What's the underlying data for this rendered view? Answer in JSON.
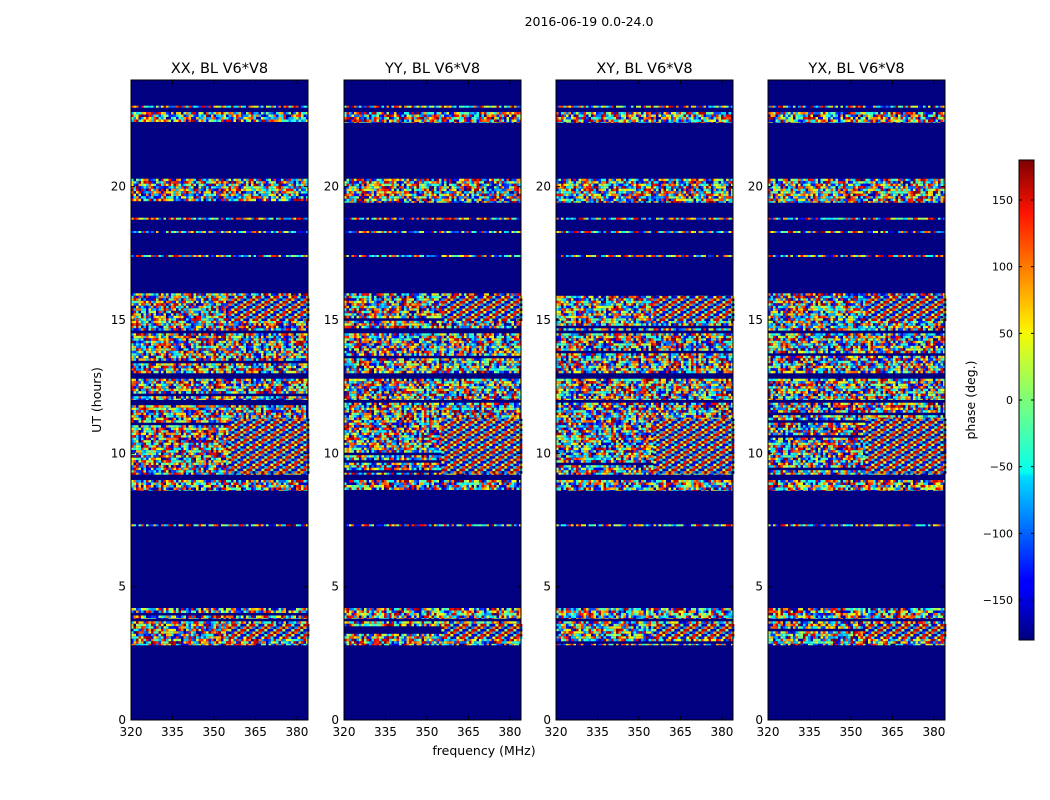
{
  "suptitle": "2016-06-19 0.0-24.0",
  "xlabel": "frequency (MHz)",
  "ylabel": "UT (hours)",
  "colorbar": {
    "label": "phase (deg.)",
    "min": -180,
    "max": 180,
    "ticks": [
      -150,
      -100,
      -50,
      0,
      50,
      100,
      150
    ],
    "tick_labels": [
      "−150",
      "−100",
      "−50",
      "0",
      "50",
      "100",
      "150"
    ],
    "colormap": "jet"
  },
  "chart_data": {
    "type": "heatmap",
    "title": "2016-06-19 0.0-24.0",
    "xlabel": "frequency (MHz)",
    "ylabel": "UT (hours)",
    "xlim": [
      320,
      384
    ],
    "ylim": [
      0,
      24
    ],
    "xticks": [
      320,
      335,
      350,
      365,
      380
    ],
    "yticks": [
      0,
      5,
      10,
      15,
      20
    ],
    "value_label": "phase (deg.)",
    "value_range": [
      -180,
      180
    ],
    "background_value": -180,
    "panels": [
      {
        "title": "XX, BL V6*V8",
        "noise_bands": [
          [
            2.8,
            3.7
          ],
          [
            3.8,
            4.2
          ],
          [
            8.6,
            9.0
          ],
          [
            9.2,
            11.9
          ],
          [
            12.0,
            12.8
          ],
          [
            13.0,
            14.5
          ],
          [
            14.6,
            16.0
          ],
          [
            19.4,
            20.3
          ],
          [
            22.4,
            22.8
          ]
        ],
        "stripe_lines": [
          7.3,
          17.4,
          18.3,
          18.8,
          23.0
        ],
        "fringe_bands": [
          [
            15.0,
            15.9
          ],
          [
            3.1,
            3.6
          ],
          [
            9.3,
            11.3
          ]
        ]
      },
      {
        "title": "YY, BL V6*V8",
        "noise_bands": [
          [
            2.8,
            3.7
          ],
          [
            3.8,
            4.2
          ],
          [
            8.6,
            9.0
          ],
          [
            9.2,
            11.9
          ],
          [
            12.0,
            12.8
          ],
          [
            13.0,
            14.5
          ],
          [
            14.6,
            16.0
          ],
          [
            19.4,
            20.3
          ],
          [
            22.4,
            22.8
          ]
        ],
        "stripe_lines": [
          7.3,
          17.4,
          18.3,
          18.8,
          23.0
        ],
        "fringe_bands": [
          [
            15.0,
            15.9
          ],
          [
            3.1,
            3.6
          ],
          [
            9.3,
            11.3
          ]
        ]
      },
      {
        "title": "XY, BL V6*V8",
        "noise_bands": [
          [
            2.8,
            3.7
          ],
          [
            3.8,
            4.2
          ],
          [
            8.6,
            9.0
          ],
          [
            9.2,
            11.9
          ],
          [
            12.0,
            12.8
          ],
          [
            13.0,
            14.5
          ],
          [
            14.6,
            16.0
          ],
          [
            19.4,
            20.3
          ],
          [
            22.4,
            22.8
          ]
        ],
        "stripe_lines": [
          7.3,
          17.4,
          18.3,
          18.8,
          23.0
        ],
        "fringe_bands": [
          [
            15.0,
            15.9
          ],
          [
            3.1,
            3.6
          ],
          [
            9.3,
            11.3
          ]
        ]
      },
      {
        "title": "YX, BL V6*V8",
        "noise_bands": [
          [
            2.8,
            3.7
          ],
          [
            3.8,
            4.2
          ],
          [
            8.6,
            9.0
          ],
          [
            9.2,
            11.9
          ],
          [
            12.0,
            12.8
          ],
          [
            13.0,
            14.5
          ],
          [
            14.6,
            16.0
          ],
          [
            19.4,
            20.3
          ],
          [
            22.4,
            22.8
          ]
        ],
        "stripe_lines": [
          7.3,
          17.4,
          18.3,
          18.8,
          23.0
        ],
        "fringe_bands": [
          [
            15.0,
            15.9
          ],
          [
            3.1,
            3.6
          ],
          [
            9.3,
            11.3
          ]
        ]
      }
    ]
  }
}
